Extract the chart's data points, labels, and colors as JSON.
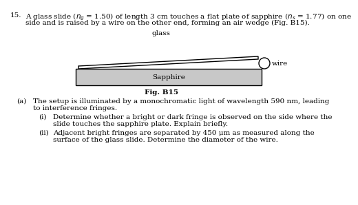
{
  "question_number": "15.",
  "question_text_line1": "A glass slide ($n_g$ = 1.50) of length 3 cm touches a flat plate of sapphire ($n_s$ = 1.77) on one",
  "question_text_line2": "side and is raised by a wire on the other end, forming an air wedge (Fig. B15).",
  "fig_label": "Fig. B15",
  "label_glass": "glass",
  "label_wire": "wire",
  "label_sapphire": "Sapphire",
  "part_a_label": "(a)",
  "part_a_text_line1": "The setup is illuminated by a monochromatic light of wavelength 590 nm, leading",
  "part_a_text_line2": "to interference fringes.",
  "part_i_label": "(i)",
  "part_i_text_line1": "Determine whether a bright or dark fringe is observed on the side where the",
  "part_i_text_line2": "slide touches the sapphire plate. Explain briefly.",
  "part_ii_label": "(ii)",
  "part_ii_text_line1": "Adjacent bright fringes are separated by 450 μm as measured along the",
  "part_ii_text_line2": "surface of the glass slide. Determine the diameter of the wire.",
  "bg_color": "#ffffff",
  "sapphire_color": "#c8c8c8",
  "text_color": "#000000",
  "font_size": 7.5
}
